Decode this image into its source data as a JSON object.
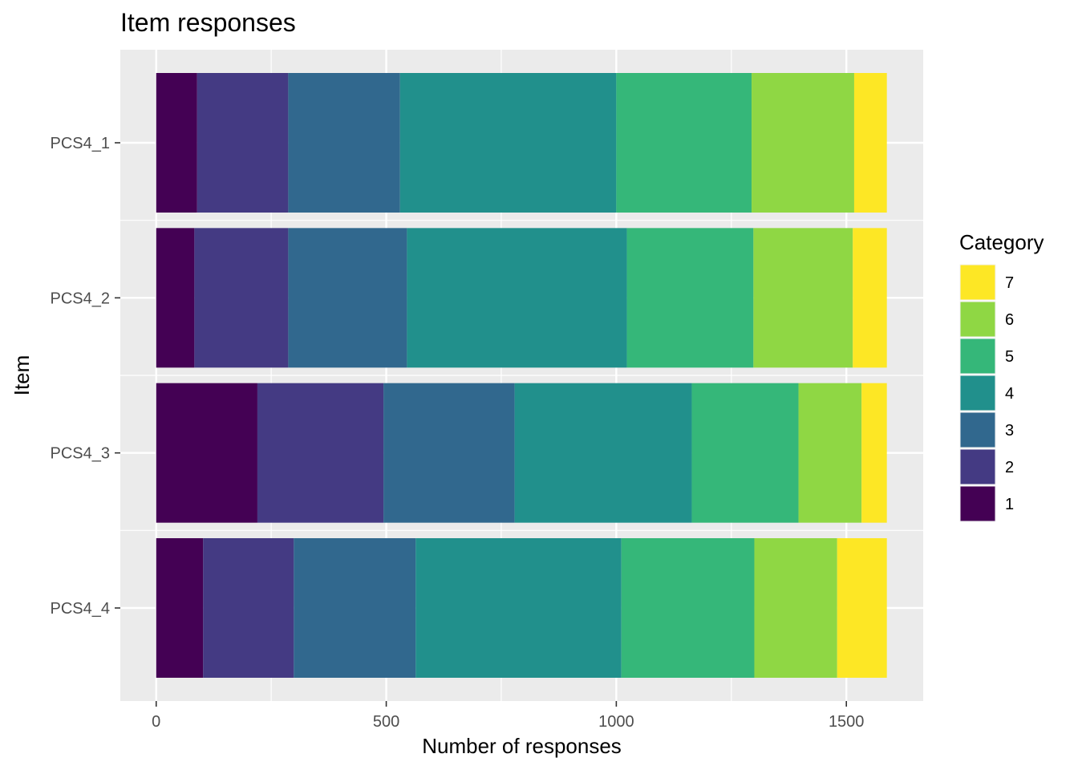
{
  "chart_data": {
    "type": "bar",
    "orientation": "horizontal",
    "stacked": true,
    "title": "Item responses",
    "xlabel": "Number of responses",
    "ylabel": "Item",
    "xlim": [
      -78,
      1667
    ],
    "x_ticks": [
      0,
      500,
      1000,
      1500
    ],
    "x_tick_labels": [
      "0",
      "500",
      "1000",
      "1500"
    ],
    "x_minor_ticks": [
      250,
      750,
      1250
    ],
    "categories": [
      "PCS4_1",
      "PCS4_2",
      "PCS4_3",
      "PCS4_4"
    ],
    "series": [
      {
        "name": "1",
        "color": "#440154",
        "values": [
          89,
          83,
          220,
          102
        ]
      },
      {
        "name": "2",
        "color": "#443A83",
        "values": [
          198,
          204,
          274,
          197
        ]
      },
      {
        "name": "3",
        "color": "#31688E",
        "values": [
          243,
          258,
          285,
          265
        ]
      },
      {
        "name": "4",
        "color": "#21908C",
        "values": [
          470,
          478,
          385,
          447
        ]
      },
      {
        "name": "5",
        "color": "#35B779",
        "values": [
          294,
          275,
          232,
          289
        ]
      },
      {
        "name": "6",
        "color": "#8FD744",
        "values": [
          223,
          216,
          137,
          180
        ]
      },
      {
        "name": "7",
        "color": "#FDE725",
        "values": [
          71,
          74,
          55,
          108
        ]
      }
    ],
    "legend": {
      "title": "Category",
      "position": "right",
      "order": [
        "7",
        "6",
        "5",
        "4",
        "3",
        "2",
        "1"
      ]
    },
    "panel_background": "#EBEBEB",
    "grid": true,
    "grid_color": "#FFFFFF"
  }
}
